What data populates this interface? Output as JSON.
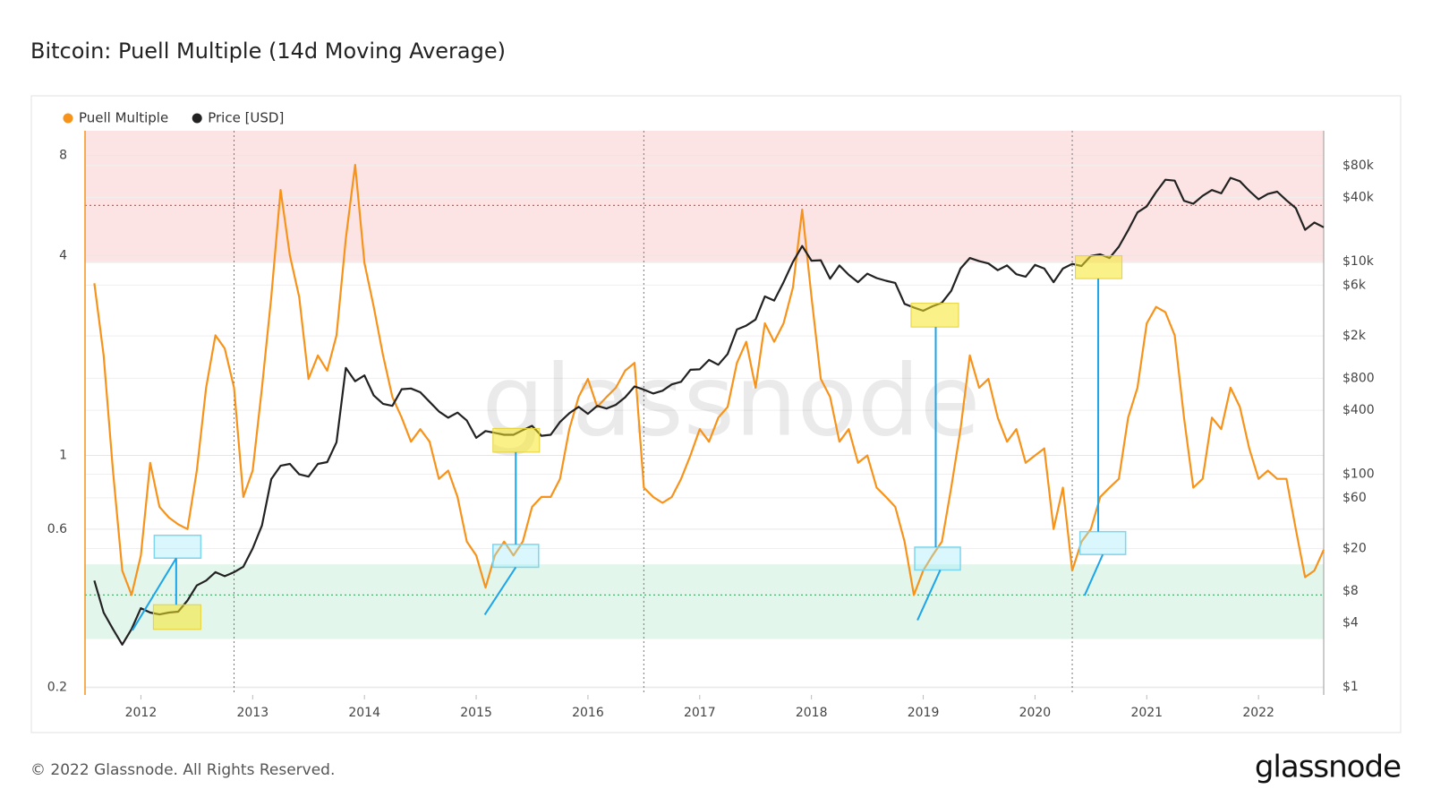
{
  "chart_data": {
    "type": "line",
    "title": "Bitcoin: Puell Multiple (14d Moving Average)",
    "footer": "© 2022 Glassnode. All Rights Reserved.",
    "logo": "glassnode",
    "watermark": "glassnode",
    "log_y": true,
    "log_y2": true,
    "xlim": [
      "2011-07",
      "2022-08"
    ],
    "xticks": [
      {
        "value": "2012-01",
        "label": "2012"
      },
      {
        "value": "2013-01",
        "label": "2013"
      },
      {
        "value": "2014-01",
        "label": "2014"
      },
      {
        "value": "2015-01",
        "label": "2015"
      },
      {
        "value": "2016-01",
        "label": "2016"
      },
      {
        "value": "2017-01",
        "label": "2017"
      },
      {
        "value": "2018-01",
        "label": "2018"
      },
      {
        "value": "2019-01",
        "label": "2019"
      },
      {
        "value": "2020-01",
        "label": "2020"
      },
      {
        "value": "2021-01",
        "label": "2021"
      },
      {
        "value": "2022-01",
        "label": "2022"
      }
    ],
    "ylim": [
      0.19,
      9.5
    ],
    "yticks": [
      0.2,
      0.6,
      1,
      4,
      8
    ],
    "y2lim": [
      0.84,
      170000
    ],
    "y2ticks": [
      {
        "value": 1,
        "label": "$1"
      },
      {
        "value": 4,
        "label": "$4"
      },
      {
        "value": 8,
        "label": "$8"
      },
      {
        "value": 20,
        "label": "$20"
      },
      {
        "value": 60,
        "label": "$60"
      },
      {
        "value": 100,
        "label": "$100"
      },
      {
        "value": 400,
        "label": "$400"
      },
      {
        "value": 800,
        "label": "$800"
      },
      {
        "value": 2000,
        "label": "$2k"
      },
      {
        "value": 6000,
        "label": "$6k"
      },
      {
        "value": 10000,
        "label": "$10k"
      },
      {
        "value": 40000,
        "label": "$40k"
      },
      {
        "value": 80000,
        "label": "$80k"
      }
    ],
    "zones": [
      {
        "from": 3.8,
        "to": 9.5,
        "color": "#fde4e4",
        "line": 5.66,
        "line_color": "#e05555"
      },
      {
        "from": 0.28,
        "to": 0.47,
        "color": "#e3f6ec",
        "line": 0.38,
        "line_color": "#4caf72"
      }
    ],
    "halvings": [
      "2012-11",
      "2016-07",
      "2020-05"
    ],
    "legend": "top-left",
    "x": [
      "2011-08",
      "2011-09",
      "2011-10",
      "2011-11",
      "2011-12",
      "2012-01",
      "2012-02",
      "2012-03",
      "2012-04",
      "2012-05",
      "2012-06",
      "2012-07",
      "2012-08",
      "2012-09",
      "2012-10",
      "2012-11",
      "2012-12",
      "2013-01",
      "2013-02",
      "2013-03",
      "2013-04",
      "2013-05",
      "2013-06",
      "2013-07",
      "2013-08",
      "2013-09",
      "2013-10",
      "2013-11",
      "2013-12",
      "2014-01",
      "2014-02",
      "2014-03",
      "2014-04",
      "2014-05",
      "2014-06",
      "2014-07",
      "2014-08",
      "2014-09",
      "2014-10",
      "2014-11",
      "2014-12",
      "2015-01",
      "2015-02",
      "2015-03",
      "2015-04",
      "2015-05",
      "2015-06",
      "2015-07",
      "2015-08",
      "2015-09",
      "2015-10",
      "2015-11",
      "2015-12",
      "2016-01",
      "2016-02",
      "2016-03",
      "2016-04",
      "2016-05",
      "2016-06",
      "2016-07",
      "2016-08",
      "2016-09",
      "2016-10",
      "2016-11",
      "2016-12",
      "2017-01",
      "2017-02",
      "2017-03",
      "2017-04",
      "2017-05",
      "2017-06",
      "2017-07",
      "2017-08",
      "2017-09",
      "2017-10",
      "2017-11",
      "2017-12",
      "2018-01",
      "2018-02",
      "2018-03",
      "2018-04",
      "2018-05",
      "2018-06",
      "2018-07",
      "2018-08",
      "2018-09",
      "2018-10",
      "2018-11",
      "2018-12",
      "2019-01",
      "2019-02",
      "2019-03",
      "2019-04",
      "2019-05",
      "2019-06",
      "2019-07",
      "2019-08",
      "2019-09",
      "2019-10",
      "2019-11",
      "2019-12",
      "2020-01",
      "2020-02",
      "2020-03",
      "2020-04",
      "2020-05",
      "2020-06",
      "2020-07",
      "2020-08",
      "2020-09",
      "2020-10",
      "2020-11",
      "2020-12",
      "2021-01",
      "2021-02",
      "2021-03",
      "2021-04",
      "2021-05",
      "2021-06",
      "2021-07",
      "2021-08",
      "2021-09",
      "2021-10",
      "2021-11",
      "2021-12",
      "2022-01",
      "2022-02",
      "2022-03",
      "2022-04",
      "2022-05",
      "2022-06",
      "2022-07",
      "2022-08"
    ],
    "series": [
      {
        "name": "Puell Multiple",
        "color": "#f7931a",
        "values": [
          3.3,
          2.0,
          0.9,
          0.45,
          0.38,
          0.5,
          0.95,
          0.7,
          0.65,
          0.62,
          0.6,
          0.9,
          1.6,
          2.3,
          2.1,
          1.6,
          0.75,
          0.9,
          1.6,
          3.0,
          6.3,
          4.0,
          3.0,
          1.7,
          2.0,
          1.8,
          2.3,
          4.5,
          7.5,
          3.8,
          2.8,
          2.0,
          1.5,
          1.3,
          1.1,
          1.2,
          1.1,
          0.85,
          0.9,
          0.75,
          0.55,
          0.5,
          0.4,
          0.5,
          0.55,
          0.5,
          0.55,
          0.7,
          0.75,
          0.75,
          0.85,
          1.2,
          1.5,
          1.7,
          1.4,
          1.5,
          1.6,
          1.8,
          1.9,
          0.8,
          0.75,
          0.72,
          0.75,
          0.85,
          1.0,
          1.2,
          1.1,
          1.3,
          1.4,
          1.9,
          2.2,
          1.6,
          2.5,
          2.2,
          2.5,
          3.2,
          5.5,
          3.0,
          1.7,
          1.5,
          1.1,
          1.2,
          0.95,
          1.0,
          0.8,
          0.75,
          0.7,
          0.55,
          0.38,
          0.45,
          0.5,
          0.55,
          0.8,
          1.2,
          2.0,
          1.6,
          1.7,
          1.3,
          1.1,
          1.2,
          0.95,
          1.0,
          1.05,
          0.6,
          0.8,
          0.45,
          0.55,
          0.6,
          0.75,
          0.8,
          0.85,
          1.3,
          1.6,
          2.5,
          2.8,
          2.7,
          2.3,
          1.3,
          0.8,
          0.85,
          1.3,
          1.2,
          1.6,
          1.4,
          1.05,
          0.85,
          0.9,
          0.85,
          0.85,
          0.6,
          0.43,
          0.45,
          0.52
        ]
      },
      {
        "name": "Price [USD]",
        "color": "#222222",
        "axis": "y2",
        "values": [
          10,
          5,
          3.5,
          2.5,
          3.5,
          5.5,
          5,
          4.8,
          5,
          5.1,
          6.5,
          9,
          10,
          12,
          11,
          12,
          13.5,
          20,
          33,
          90,
          120,
          125,
          100,
          95,
          125,
          130,
          200,
          1000,
          750,
          850,
          550,
          460,
          440,
          630,
          640,
          590,
          480,
          390,
          340,
          380,
          320,
          220,
          255,
          245,
          235,
          235,
          260,
          285,
          230,
          235,
          310,
          375,
          430,
          370,
          440,
          415,
          450,
          530,
          670,
          625,
          575,
          610,
          700,
          740,
          960,
          970,
          1190,
          1070,
          1350,
          2300,
          2500,
          2850,
          4700,
          4300,
          6400,
          9900,
          14000,
          10200,
          10300,
          6900,
          9200,
          7500,
          6400,
          7700,
          7000,
          6600,
          6300,
          4000,
          3700,
          3450,
          3800,
          4100,
          5300,
          8600,
          10800,
          10100,
          9600,
          8300,
          9200,
          7600,
          7200,
          9300,
          8600,
          6400,
          8600,
          9500,
          9100,
          11300,
          11700,
          10800,
          13800,
          19700,
          29000,
          33100,
          45000,
          58800,
          57700,
          37300,
          35000,
          41500,
          47100,
          43800,
          61300,
          57000,
          46300,
          38500,
          43200,
          45500,
          37700,
          31800,
          19900,
          23300,
          21000
        ]
      }
    ]
  }
}
